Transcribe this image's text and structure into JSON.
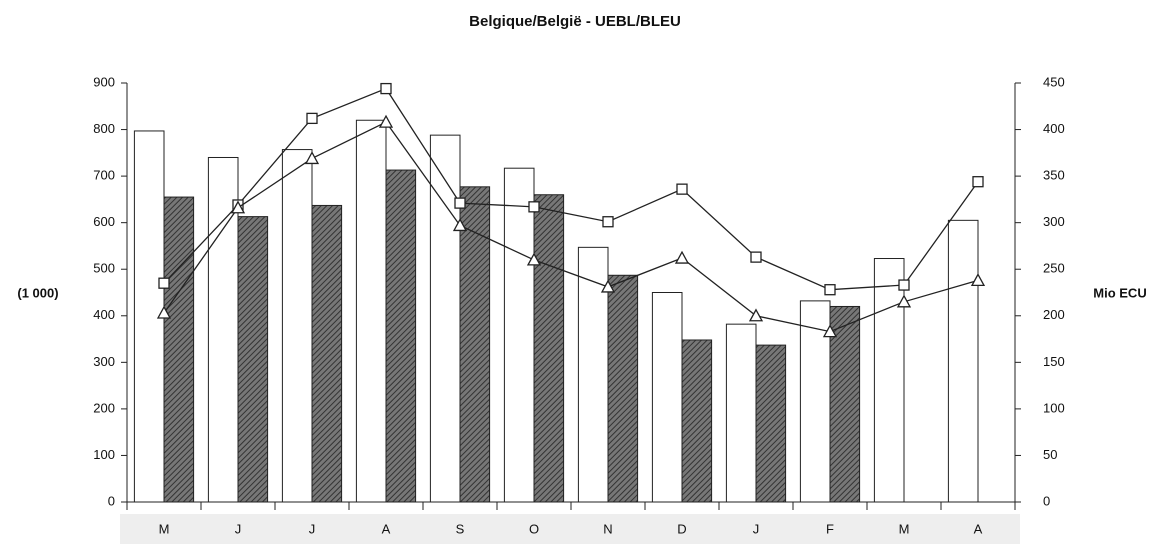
{
  "chart_data": {
    "type": "bar",
    "title": "Belgique/België - UEBL/BLEU",
    "ylabel": "(1 000)",
    "y2label": "Mio ECU",
    "categories": [
      "M",
      "J",
      "J",
      "A",
      "S",
      "O",
      "N",
      "D",
      "J",
      "F",
      "M",
      "A"
    ],
    "ylim": [
      0,
      900
    ],
    "yticks": [
      0,
      100,
      200,
      300,
      400,
      500,
      600,
      700,
      800,
      900
    ],
    "y2lim": [
      0,
      450
    ],
    "y2ticks": [
      0,
      50,
      100,
      150,
      200,
      250,
      300,
      350,
      400,
      450
    ],
    "series": [
      {
        "type": "bar",
        "color": "#ffffff",
        "values": [
          797,
          740,
          757,
          820,
          788,
          717,
          547,
          450,
          382,
          432,
          523,
          605
        ]
      },
      {
        "type": "bar",
        "color": "#333333",
        "hatch": true,
        "values": [
          655,
          613,
          637,
          713,
          677,
          660,
          487,
          348,
          337,
          420,
          null,
          null
        ]
      },
      {
        "type": "line",
        "axis": "y2",
        "color": "#222222",
        "marker": "square",
        "values": [
          235,
          319,
          412,
          444,
          321,
          317,
          301,
          336,
          263,
          228,
          233,
          344
        ]
      },
      {
        "type": "line",
        "axis": "y2",
        "color": "#222222",
        "marker": "triangle",
        "values": [
          203,
          316,
          369,
          408,
          297,
          260,
          231,
          262,
          200,
          183,
          215,
          238
        ]
      }
    ]
  }
}
